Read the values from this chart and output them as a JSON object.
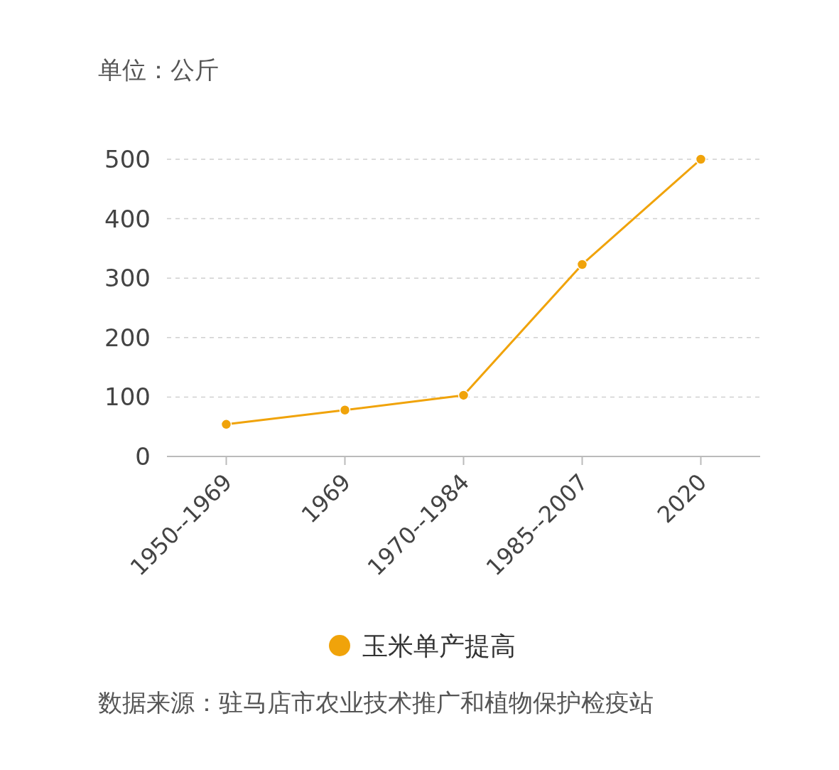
{
  "chart_data": {
    "type": "line",
    "ylabel": "单位：公斤",
    "annotations": [
      "数据来源：驻马店市农业技术推广和植物保护检疫站"
    ],
    "categories": [
      "1950--1969",
      "1969",
      "1970--1984",
      "1985--2007",
      "2020"
    ],
    "series": [
      {
        "name": "玉米单产提高",
        "color": "#f0a30a",
        "values": [
          54,
          78,
          103,
          323,
          500
        ]
      }
    ],
    "ylim": [
      0,
      500
    ],
    "yticks": [
      0,
      100,
      200,
      300,
      400,
      500
    ],
    "grid": "y",
    "legend": "bottom",
    "marker": "circle",
    "line_style": "solid"
  }
}
